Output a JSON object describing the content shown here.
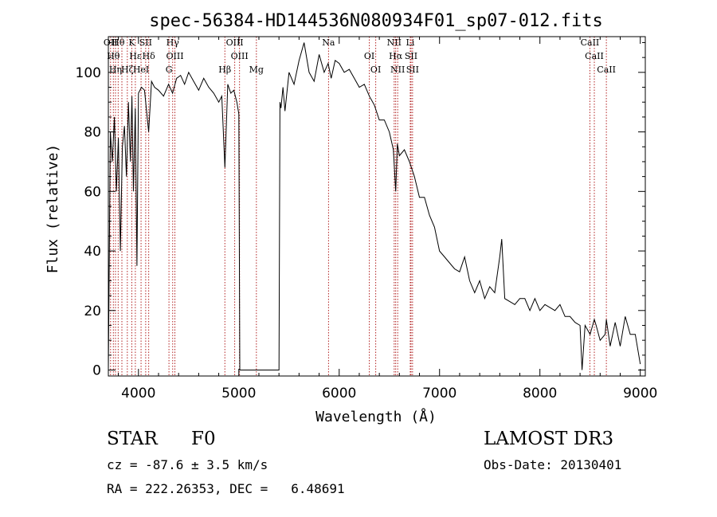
{
  "chart_data": {
    "type": "line",
    "title": "spec-56384-HD144536N080934F01_sp07-012.fits",
    "xlabel": "Wavelength (Å)",
    "ylabel": "Flux (relative)",
    "xlim": [
      3700,
      9050
    ],
    "ylim": [
      -2,
      112
    ],
    "xticks": [
      4000,
      5000,
      6000,
      7000,
      8000,
      9000
    ],
    "yticks": [
      0,
      20,
      40,
      60,
      80,
      100
    ],
    "grid": false,
    "series": [
      {
        "color": "#000000",
        "x": [
          3700,
          3720,
          3740,
          3760,
          3780,
          3800,
          3820,
          3840,
          3860,
          3880,
          3900,
          3920,
          3935,
          3950,
          3968,
          3985,
          4000,
          4030,
          4060,
          4102,
          4130,
          4160,
          4200,
          4250,
          4300,
          4340,
          4380,
          4420,
          4460,
          4500,
          4550,
          4600,
          4650,
          4700,
          4750,
          4800,
          4830,
          4861,
          4890,
          4920,
          4950,
          4980,
          5000,
          5010,
          5020,
          5050,
          5100,
          5200,
          5300,
          5400,
          5410,
          5420,
          5440,
          5460,
          5500,
          5550,
          5600,
          5650,
          5700,
          5750,
          5800,
          5850,
          5890,
          5920,
          5960,
          6000,
          6050,
          6100,
          6150,
          6200,
          6250,
          6300,
          6350,
          6400,
          6450,
          6500,
          6540,
          6563,
          6580,
          6600,
          6650,
          6700,
          6750,
          6800,
          6850,
          6900,
          6950,
          7000,
          7050,
          7100,
          7150,
          7200,
          7250,
          7300,
          7350,
          7400,
          7450,
          7500,
          7550,
          7600,
          7620,
          7650,
          7700,
          7750,
          7800,
          7850,
          7900,
          7950,
          8000,
          8050,
          8100,
          8150,
          8200,
          8250,
          8300,
          8350,
          8400,
          8420,
          8450,
          8500,
          8542,
          8560,
          8600,
          8650,
          8662,
          8700,
          8750,
          8800,
          8850,
          8900,
          8950,
          9000
        ],
        "y": [
          0,
          80,
          70,
          85,
          60,
          78,
          40,
          75,
          82,
          65,
          90,
          70,
          92,
          60,
          88,
          35,
          93,
          95,
          94,
          80,
          97,
          95,
          94,
          92,
          96,
          93,
          98,
          99,
          96,
          100,
          97,
          94,
          98,
          95,
          93,
          90,
          92,
          68,
          96,
          93,
          94,
          90,
          86,
          0,
          0,
          0,
          0,
          0,
          0,
          0,
          90,
          88,
          95,
          87,
          100,
          96,
          104,
          110,
          100,
          97,
          106,
          100,
          103,
          98,
          104,
          103,
          100,
          101,
          98,
          95,
          96,
          92,
          89,
          84,
          84,
          80,
          74,
          60,
          76,
          72,
          74,
          70,
          65,
          58,
          58,
          52,
          48,
          40,
          38,
          36,
          34,
          33,
          38,
          30,
          26,
          30,
          24,
          28,
          26,
          38,
          44,
          24,
          23,
          22,
          24,
          24,
          20,
          24,
          20,
          22,
          21,
          20,
          22,
          18,
          18,
          16,
          15,
          0,
          15,
          12,
          17,
          15,
          10,
          12,
          17,
          8,
          16,
          8,
          18,
          12,
          12,
          2
        ]
      }
    ],
    "lines": [
      {
        "x": 3722,
        "label": "OII"
      },
      {
        "x": 3750,
        "label": "Hθ"
      },
      {
        "x": 3771,
        "label": "Hη"
      },
      {
        "x": 3798,
        "label": "Hθ"
      },
      {
        "x": 3835,
        "label": ""
      },
      {
        "x": 3889,
        "label": "Hζ"
      },
      {
        "x": 3934,
        "label": "K"
      },
      {
        "x": 3969,
        "label": "Hε"
      },
      {
        "x": 4026,
        "label": "HeI"
      },
      {
        "x": 4072,
        "label": "SII"
      },
      {
        "x": 4102,
        "label": "Hδ"
      },
      {
        "x": 4304,
        "label": "G"
      },
      {
        "x": 4341,
        "label": "Hγ"
      },
      {
        "x": 4363,
        "label": "OIII"
      },
      {
        "x": 4861,
        "label": "Hβ"
      },
      {
        "x": 4959,
        "label": "OIII"
      },
      {
        "x": 5007,
        "label": "OIII"
      },
      {
        "x": 5175,
        "label": "Mg"
      },
      {
        "x": 5894,
        "label": "Na"
      },
      {
        "x": 6300,
        "label": "OI"
      },
      {
        "x": 6364,
        "label": "OI"
      },
      {
        "x": 6548,
        "label": "NII"
      },
      {
        "x": 6563,
        "label": "Hα"
      },
      {
        "x": 6583,
        "label": "NII"
      },
      {
        "x": 6708,
        "label": "Li"
      },
      {
        "x": 6716,
        "label": "SII"
      },
      {
        "x": 6731,
        "label": "SII"
      },
      {
        "x": 8498,
        "label": "CaII"
      },
      {
        "x": 8542,
        "label": "CaII"
      },
      {
        "x": 8662,
        "label": "CaII"
      }
    ]
  },
  "info": {
    "object_type": "STAR",
    "subclass": "F0",
    "survey": "LAMOST DR3",
    "cz": "cz = -87.6 ± 3.5 km/s",
    "obs_date": "Obs-Date: 20130401",
    "coords": "RA = 222.26353, DEC =   6.48691"
  }
}
